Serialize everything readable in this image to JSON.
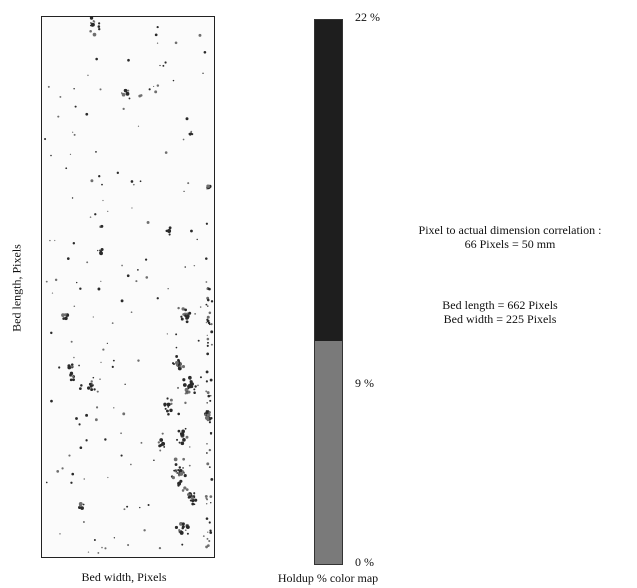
{
  "bed_map": {
    "xlabel": "Bed width, Pixels",
    "ylabel": "Bed length, Pixels"
  },
  "colorbar": {
    "title": "Holdup % color map",
    "tick_top": "22 %",
    "tick_mid": "9 %",
    "tick_bottom": "0 %",
    "max_pct": 22,
    "mid_pct": 9,
    "min_pct": 0,
    "upper_color": "#1e1e1e",
    "lower_color": "#7a7a7a"
  },
  "annotations": {
    "correlation_line1": "Pixel to actual dimension correlation :",
    "correlation_line2": "66 Pixels = 50 mm",
    "bed_length": "Bed length = 662 Pixels",
    "bed_width": "Bed width = 225 Pixels"
  },
  "colors": {
    "dot_dark": "#2a2a2a",
    "dot_mid": "#6f6f6f",
    "background": "#fbfbfb"
  }
}
